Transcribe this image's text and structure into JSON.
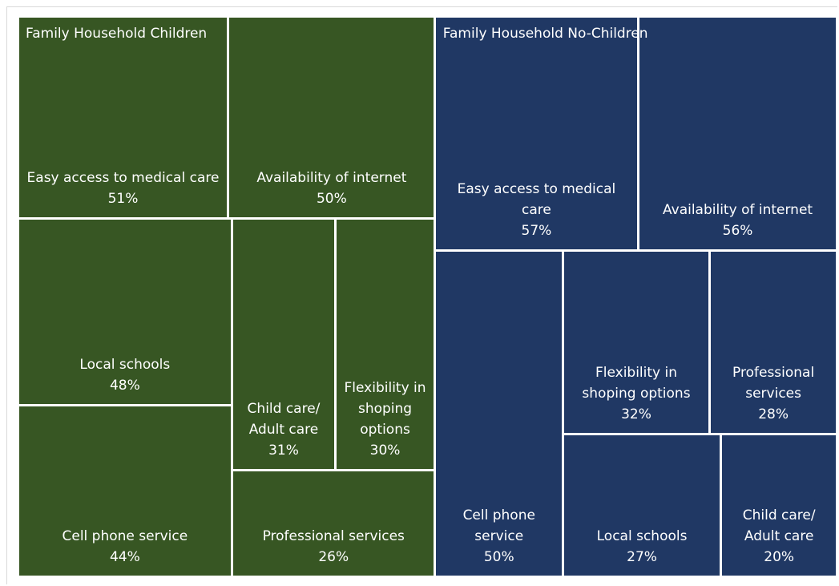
{
  "chart_data": {
    "type": "treemap",
    "series": [
      {
        "name": "Family Household Children",
        "color": "#375623",
        "categories": [
          "Easy access to medical care",
          "Availability of internet",
          "Local schools",
          "Cell phone service",
          "Child care/ Adult care",
          "Flexibility in shoping options",
          "Professional services"
        ],
        "values": [
          51,
          50,
          48,
          44,
          31,
          30,
          26
        ],
        "value_labels": [
          "51%",
          "50%",
          "48%",
          "44%",
          "31%",
          "30%",
          "26%"
        ]
      },
      {
        "name": "Family Household No-Children",
        "color": "#203864",
        "categories": [
          "Easy access to medical care",
          "Availability of internet",
          "Cell phone service",
          "Flexibility in shoping options",
          "Professional services",
          "Local schools",
          "Child care/ Adult care"
        ],
        "values": [
          57,
          56,
          50,
          32,
          28,
          27,
          20
        ],
        "value_labels": [
          "57%",
          "56%",
          "50%",
          "32%",
          "28%",
          "27%",
          "20%"
        ]
      }
    ]
  }
}
